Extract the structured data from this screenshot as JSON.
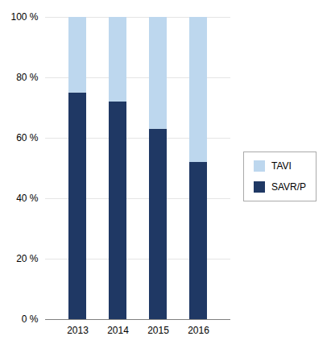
{
  "chart_data": {
    "type": "bar",
    "stacked": true,
    "categories": [
      "2013",
      "2014",
      "2015",
      "2016"
    ],
    "series": [
      {
        "name": "SAVR/P",
        "color": "#1F3864",
        "values": [
          75,
          72,
          63,
          52
        ]
      },
      {
        "name": "TAVI",
        "color": "#BDD7EE",
        "values": [
          25,
          28,
          37,
          48
        ]
      }
    ],
    "ylim": [
      0,
      100
    ],
    "yticks": [
      {
        "value": 0,
        "label": "0 %"
      },
      {
        "value": 20,
        "label": "20 %"
      },
      {
        "value": 40,
        "label": "40 %"
      },
      {
        "value": 60,
        "label": "60 %"
      },
      {
        "value": 80,
        "label": "80 %"
      },
      {
        "value": 100,
        "label": "100 %"
      }
    ],
    "grid": true,
    "legend": "right"
  }
}
